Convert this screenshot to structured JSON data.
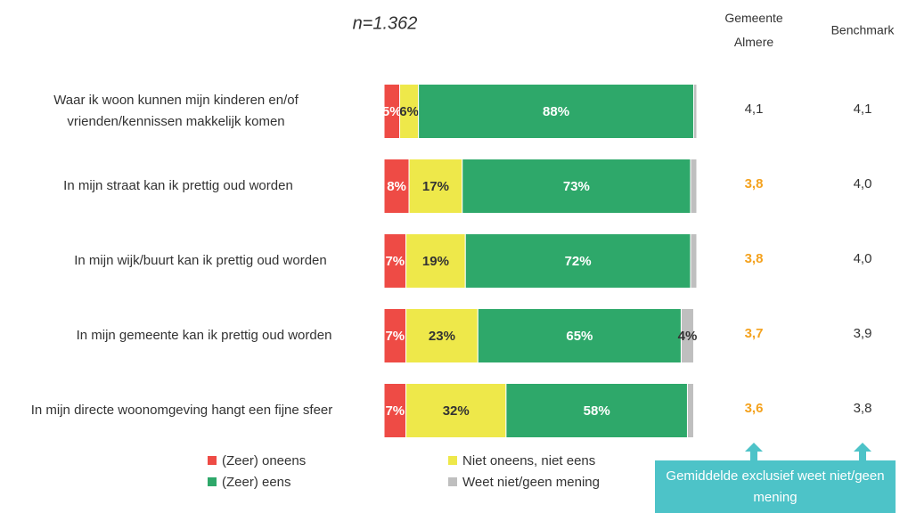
{
  "chart_data": {
    "type": "stacked_barh",
    "subtitle": "n=1.362",
    "categories": [
      "Waar ik woon kunnen mijn kinderen en/of vrienden/kennissen makkelijk komen",
      "In mijn straat kan ik prettig oud worden",
      "In mijn wijk/buurt kan ik prettig oud worden",
      "In mijn gemeente kan ik prettig oud worden",
      "In mijn directe woonomgeving hangt een fijne sfeer"
    ],
    "xlim": [
      0,
      100
    ],
    "series": [
      {
        "name": "(Zeer) oneens",
        "color": "#ee4b45",
        "label_color": "#ffffff",
        "values": [
          5,
          8,
          7,
          7,
          7
        ],
        "value_labels": [
          "5%",
          "8%",
          "7%",
          "7%",
          "7%"
        ]
      },
      {
        "name": "Niet oneens, niet eens",
        "color": "#eee84a",
        "label_color": "#333333",
        "values": [
          6,
          17,
          19,
          23,
          32
        ],
        "value_labels": [
          "6%",
          "17%",
          "19%",
          "23%",
          "32%"
        ]
      },
      {
        "name": "(Zeer) eens",
        "color": "#2ea86a",
        "label_color": "#ffffff",
        "values": [
          88,
          73,
          72,
          65,
          58
        ],
        "value_labels": [
          "88%",
          "73%",
          "72%",
          "65%",
          "58%"
        ]
      },
      {
        "name": "Weet niet/geen mening",
        "color": "#bfbfbf",
        "label_color": "#333333",
        "values": [
          1,
          2,
          2,
          4,
          2
        ],
        "value_labels": [
          null,
          null,
          null,
          "4%",
          null
        ]
      }
    ],
    "columns": [
      {
        "header": "Gemeente Almere",
        "values": [
          4.1,
          3.8,
          3.8,
          3.7,
          3.6
        ],
        "value_labels": [
          "4,1",
          "3,8",
          "3,8",
          "3,7",
          "3,6"
        ],
        "colors": [
          "#333333",
          "#f4a21e",
          "#f4a21e",
          "#f4a21e",
          "#f4a21e"
        ]
      },
      {
        "header": "Benchmark",
        "values": [
          4.1,
          4.0,
          4.0,
          3.9,
          3.8
        ],
        "value_labels": [
          "4,1",
          "4,0",
          "4,0",
          "3,9",
          "3,8"
        ],
        "colors": [
          "#333333",
          "#333333",
          "#333333",
          "#333333",
          "#333333"
        ]
      }
    ],
    "annotation": "Gemiddelde exclusief weet niet/geen mening"
  }
}
